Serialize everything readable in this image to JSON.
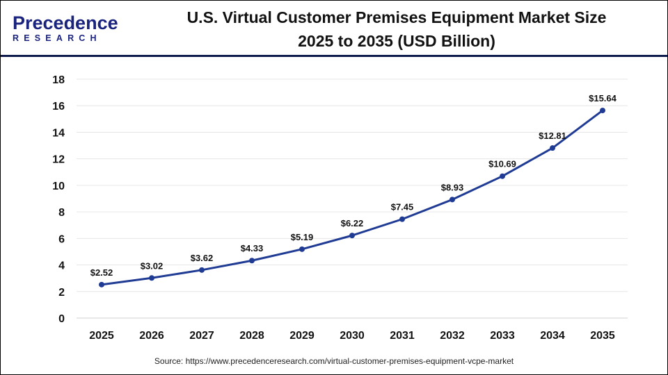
{
  "logo": {
    "main": "Precedence",
    "sub": "RESEARCH"
  },
  "title_line1": "U.S. Virtual Customer Premises Equipment Market Size",
  "title_line2": "2025 to 2035 (USD Billion)",
  "source": "Source: https://www.precedenceresearch.com/virtual-customer-premises-equipment-vcpe-market",
  "colors": {
    "line": "#1f3b94",
    "grid": "#e6e6e6",
    "header_rule": "#0d1b4c"
  },
  "chart_data": {
    "type": "line",
    "title": "U.S. Virtual Customer Premises Equipment Market Size 2025 to 2035 (USD Billion)",
    "categories": [
      "2025",
      "2026",
      "2027",
      "2028",
      "2029",
      "2030",
      "2031",
      "2032",
      "2033",
      "2034",
      "2035"
    ],
    "values": [
      2.52,
      3.02,
      3.62,
      4.33,
      5.19,
      6.22,
      7.45,
      8.93,
      10.69,
      12.81,
      15.64
    ],
    "data_labels": [
      "$2.52",
      "$3.02",
      "$3.62",
      "$4.33",
      "$5.19",
      "$6.22",
      "$7.45",
      "$8.93",
      "$10.69",
      "$12.81",
      "$15.64"
    ],
    "ylim": [
      0,
      18
    ],
    "yticks": [
      0,
      2,
      4,
      6,
      8,
      10,
      12,
      14,
      16,
      18
    ],
    "grid": true,
    "legend": "none"
  }
}
